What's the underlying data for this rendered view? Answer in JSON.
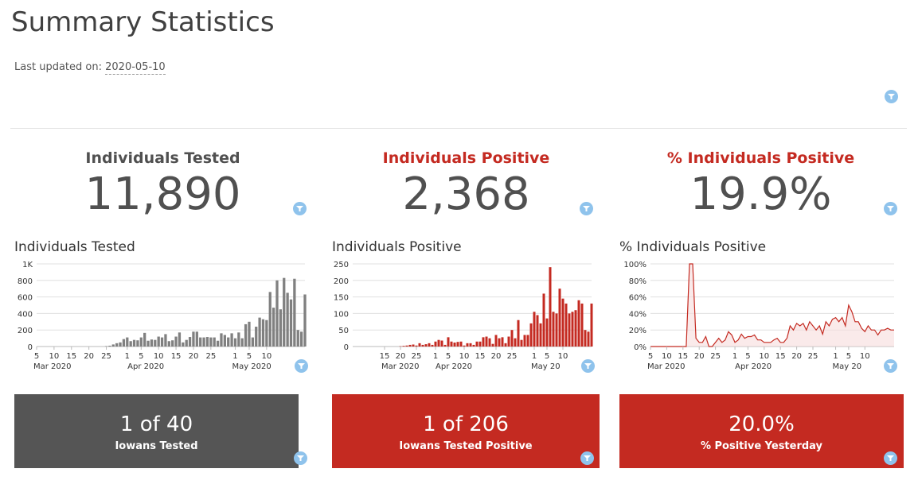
{
  "header": {
    "title": "Summary Statistics",
    "updated_label": "Last updated on:",
    "updated_date": "2020-05-10"
  },
  "kpis": [
    {
      "title": "Individuals Tested",
      "value": "11,890",
      "color": "#505050"
    },
    {
      "title": "Individuals Positive",
      "value": "2,368",
      "color": "#c42a21"
    },
    {
      "title": "% Individuals Positive",
      "value": "19.9%",
      "color": "#c42a21"
    }
  ],
  "cards": [
    {
      "big": "1 of 40",
      "small": "Iowans Tested",
      "color": "#555555"
    },
    {
      "big": "1 of 206",
      "small": "Iowans Tested Positive",
      "color": "#c42a21"
    },
    {
      "big": "20.0%",
      "small": "% Positive Yesterday",
      "color": "#c42a21"
    }
  ],
  "icons": {
    "filter": "filter-icon"
  },
  "chart_data": [
    {
      "type": "bar",
      "title": "Individuals Tested",
      "color": "#808080",
      "x_start": "2020-03-05",
      "ylim": [
        0,
        1000
      ],
      "yticks": [
        "0",
        "200",
        "400",
        "600",
        "800",
        "1K"
      ],
      "ytick_values": [
        0,
        200,
        400,
        600,
        800,
        1000
      ],
      "xticks": [
        "5",
        "10",
        "15",
        "20",
        "25",
        "1",
        "5",
        "10",
        "15",
        "20",
        "25",
        "1",
        "5",
        "10"
      ],
      "xtick_days": [
        0,
        5,
        10,
        15,
        20,
        26,
        30,
        35,
        40,
        45,
        50,
        57,
        61,
        66
      ],
      "month_labels": [
        "Mar 2020",
        "Apr 2020",
        "May 2020"
      ],
      "month_days": [
        0,
        27,
        57
      ],
      "values": [
        0,
        0,
        0,
        0,
        0,
        0,
        0,
        0,
        0,
        0,
        0,
        0,
        0,
        0,
        0,
        0,
        0,
        0,
        0,
        0,
        5,
        10,
        25,
        40,
        50,
        90,
        110,
        65,
        80,
        75,
        110,
        165,
        70,
        85,
        80,
        120,
        110,
        150,
        65,
        75,
        120,
        170,
        50,
        80,
        115,
        180,
        180,
        110,
        110,
        115,
        110,
        110,
        70,
        160,
        140,
        110,
        160,
        100,
        170,
        100,
        270,
        300,
        110,
        240,
        350,
        330,
        320,
        660,
        470,
        800,
        450,
        830,
        650,
        570,
        820,
        200,
        180,
        630
      ]
    },
    {
      "type": "bar",
      "title": "Individuals Positive",
      "color": "#c42a21",
      "x_start": "2020-03-05",
      "ylim": [
        0,
        250
      ],
      "yticks": [
        "0",
        "50",
        "100",
        "150",
        "200",
        "250"
      ],
      "ytick_values": [
        0,
        50,
        100,
        150,
        200,
        250
      ],
      "xticks": [
        "15",
        "20",
        "25",
        "1",
        "5",
        "10",
        "15",
        "20",
        "25",
        "1",
        "5",
        "10"
      ],
      "xtick_days": [
        10,
        15,
        20,
        26,
        30,
        35,
        40,
        45,
        50,
        57,
        61,
        66
      ],
      "month_labels": [
        "Mar 2020",
        "Apr 2020",
        "May 20"
      ],
      "month_days": [
        10,
        27,
        57
      ],
      "values": [
        0,
        0,
        0,
        0,
        0,
        0,
        0,
        0,
        0,
        0,
        0,
        0,
        0,
        0,
        0,
        1,
        2,
        3,
        5,
        6,
        3,
        10,
        5,
        7,
        10,
        5,
        15,
        20,
        18,
        5,
        28,
        15,
        12,
        14,
        15,
        3,
        10,
        10,
        5,
        15,
        15,
        28,
        30,
        25,
        8,
        35,
        25,
        28,
        10,
        30,
        50,
        25,
        80,
        20,
        35,
        35,
        70,
        105,
        95,
        70,
        160,
        85,
        240,
        105,
        100,
        175,
        145,
        130,
        100,
        105,
        110,
        140,
        130,
        50,
        45,
        130
      ]
    },
    {
      "type": "area",
      "title": "% Individuals Positive",
      "color": "#c42a21",
      "x_start": "2020-03-05",
      "ylim": [
        0,
        100
      ],
      "yticks": [
        "0%",
        "20%",
        "40%",
        "60%",
        "80%",
        "100%"
      ],
      "ytick_values": [
        0,
        20,
        40,
        60,
        80,
        100
      ],
      "xticks": [
        "5",
        "10",
        "15",
        "20",
        "25",
        "1",
        "5",
        "10",
        "15",
        "20",
        "25",
        "1",
        "5",
        "10"
      ],
      "xtick_days": [
        0,
        5,
        10,
        15,
        20,
        26,
        30,
        35,
        40,
        45,
        50,
        57,
        61,
        66
      ],
      "month_labels": [
        "Mar 2020",
        "Apr 2020",
        "May 20"
      ],
      "month_days": [
        0,
        27,
        57
      ],
      "values": [
        0,
        0,
        0,
        0,
        0,
        0,
        0,
        0,
        0,
        0,
        0,
        0,
        100,
        100,
        10,
        5,
        5,
        12,
        0,
        0,
        5,
        10,
        5,
        8,
        18,
        14,
        5,
        8,
        15,
        10,
        12,
        12,
        14,
        8,
        8,
        5,
        5,
        5,
        8,
        10,
        5,
        5,
        10,
        25,
        20,
        28,
        25,
        28,
        20,
        30,
        25,
        20,
        25,
        15,
        30,
        25,
        33,
        35,
        30,
        35,
        25,
        50,
        42,
        30,
        30,
        22,
        18,
        25,
        20,
        20,
        14,
        20,
        20,
        22,
        20,
        20
      ]
    }
  ]
}
